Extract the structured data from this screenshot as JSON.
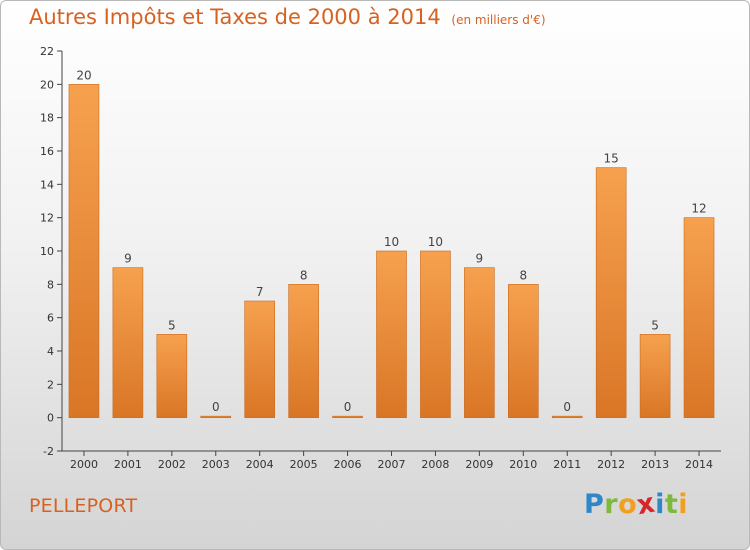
{
  "title": {
    "main": "Autres Impôts et Taxes de 2000 à 2014",
    "unit": "(en milliers d'€)"
  },
  "commune": "PELLEPORT",
  "logo": {
    "letters": [
      {
        "ch": "P",
        "color": "#2d87c9"
      },
      {
        "ch": "r",
        "color": "#7db93d"
      },
      {
        "ch": "o",
        "color": "#f0a020"
      },
      {
        "ch": "x",
        "color": "#d6252b"
      },
      {
        "ch": "i",
        "color": "#2d87c9"
      },
      {
        "ch": "t",
        "color": "#7db93d"
      },
      {
        "ch": "i",
        "color": "#f0a020"
      }
    ]
  },
  "colors": {
    "bar_light": "#f6a14e",
    "bar_dark": "#d97626",
    "accent": "#d9611f"
  },
  "chart_data": {
    "type": "bar",
    "categories": [
      "2000",
      "2001",
      "2002",
      "2003",
      "2004",
      "2005",
      "2006",
      "2007",
      "2008",
      "2009",
      "2010",
      "2011",
      "2012",
      "2013",
      "2014"
    ],
    "values": [
      20,
      9,
      5,
      0,
      7,
      8,
      0,
      10,
      10,
      9,
      8,
      0,
      15,
      5,
      12
    ],
    "title": "Autres Impôts et Taxes de 2000 à 2014",
    "subtitle": "(en milliers d'€)",
    "xlabel": "",
    "ylabel": "",
    "ylim": [
      -2,
      22
    ],
    "yticks": [
      -2,
      0,
      2,
      4,
      6,
      8,
      10,
      12,
      14,
      16,
      18,
      20,
      22
    ],
    "grid": false,
    "legend": "none"
  }
}
